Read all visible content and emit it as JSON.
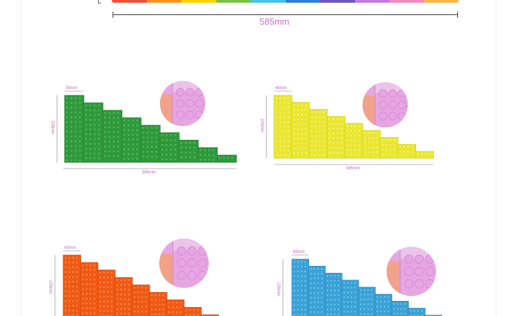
{
  "top": {
    "width_label": "585mm",
    "strip_colors": [
      "#f0503a",
      "#f7931e",
      "#ffd200",
      "#7cc242",
      "#45c4e3",
      "#2e7fd9",
      "#6d57c7",
      "#c47bd9",
      "#f28bbf",
      "#f7b64a"
    ]
  },
  "panels": [
    {
      "color": "#2f9a3b",
      "dark": "#237a2d",
      "dot": "#4bb556",
      "width_label": "585mm",
      "height_label": "225mm",
      "step_label": "55mm"
    },
    {
      "color": "#ece82e",
      "dark": "#cfcb1a",
      "dot": "#f6f36a",
      "width_label": "585mm",
      "height_label": "225mm",
      "step_label": "65mm"
    },
    {
      "color": "#f25a13",
      "dark": "#cf4208",
      "dot": "#ff7a3a",
      "width_label": "",
      "height_label": "225mm",
      "step_label": "65mm"
    },
    {
      "color": "#3aa3d9",
      "dark": "#237fb3",
      "dot": "#62bdea",
      "width_label": "",
      "height_label": "225mm",
      "step_label": "65mm"
    }
  ],
  "zoom": {
    "pink": "#e6a6e2",
    "pink_dark": "#cf87cc",
    "peach": "#f0a38a",
    "bump": "#d98ed8"
  }
}
